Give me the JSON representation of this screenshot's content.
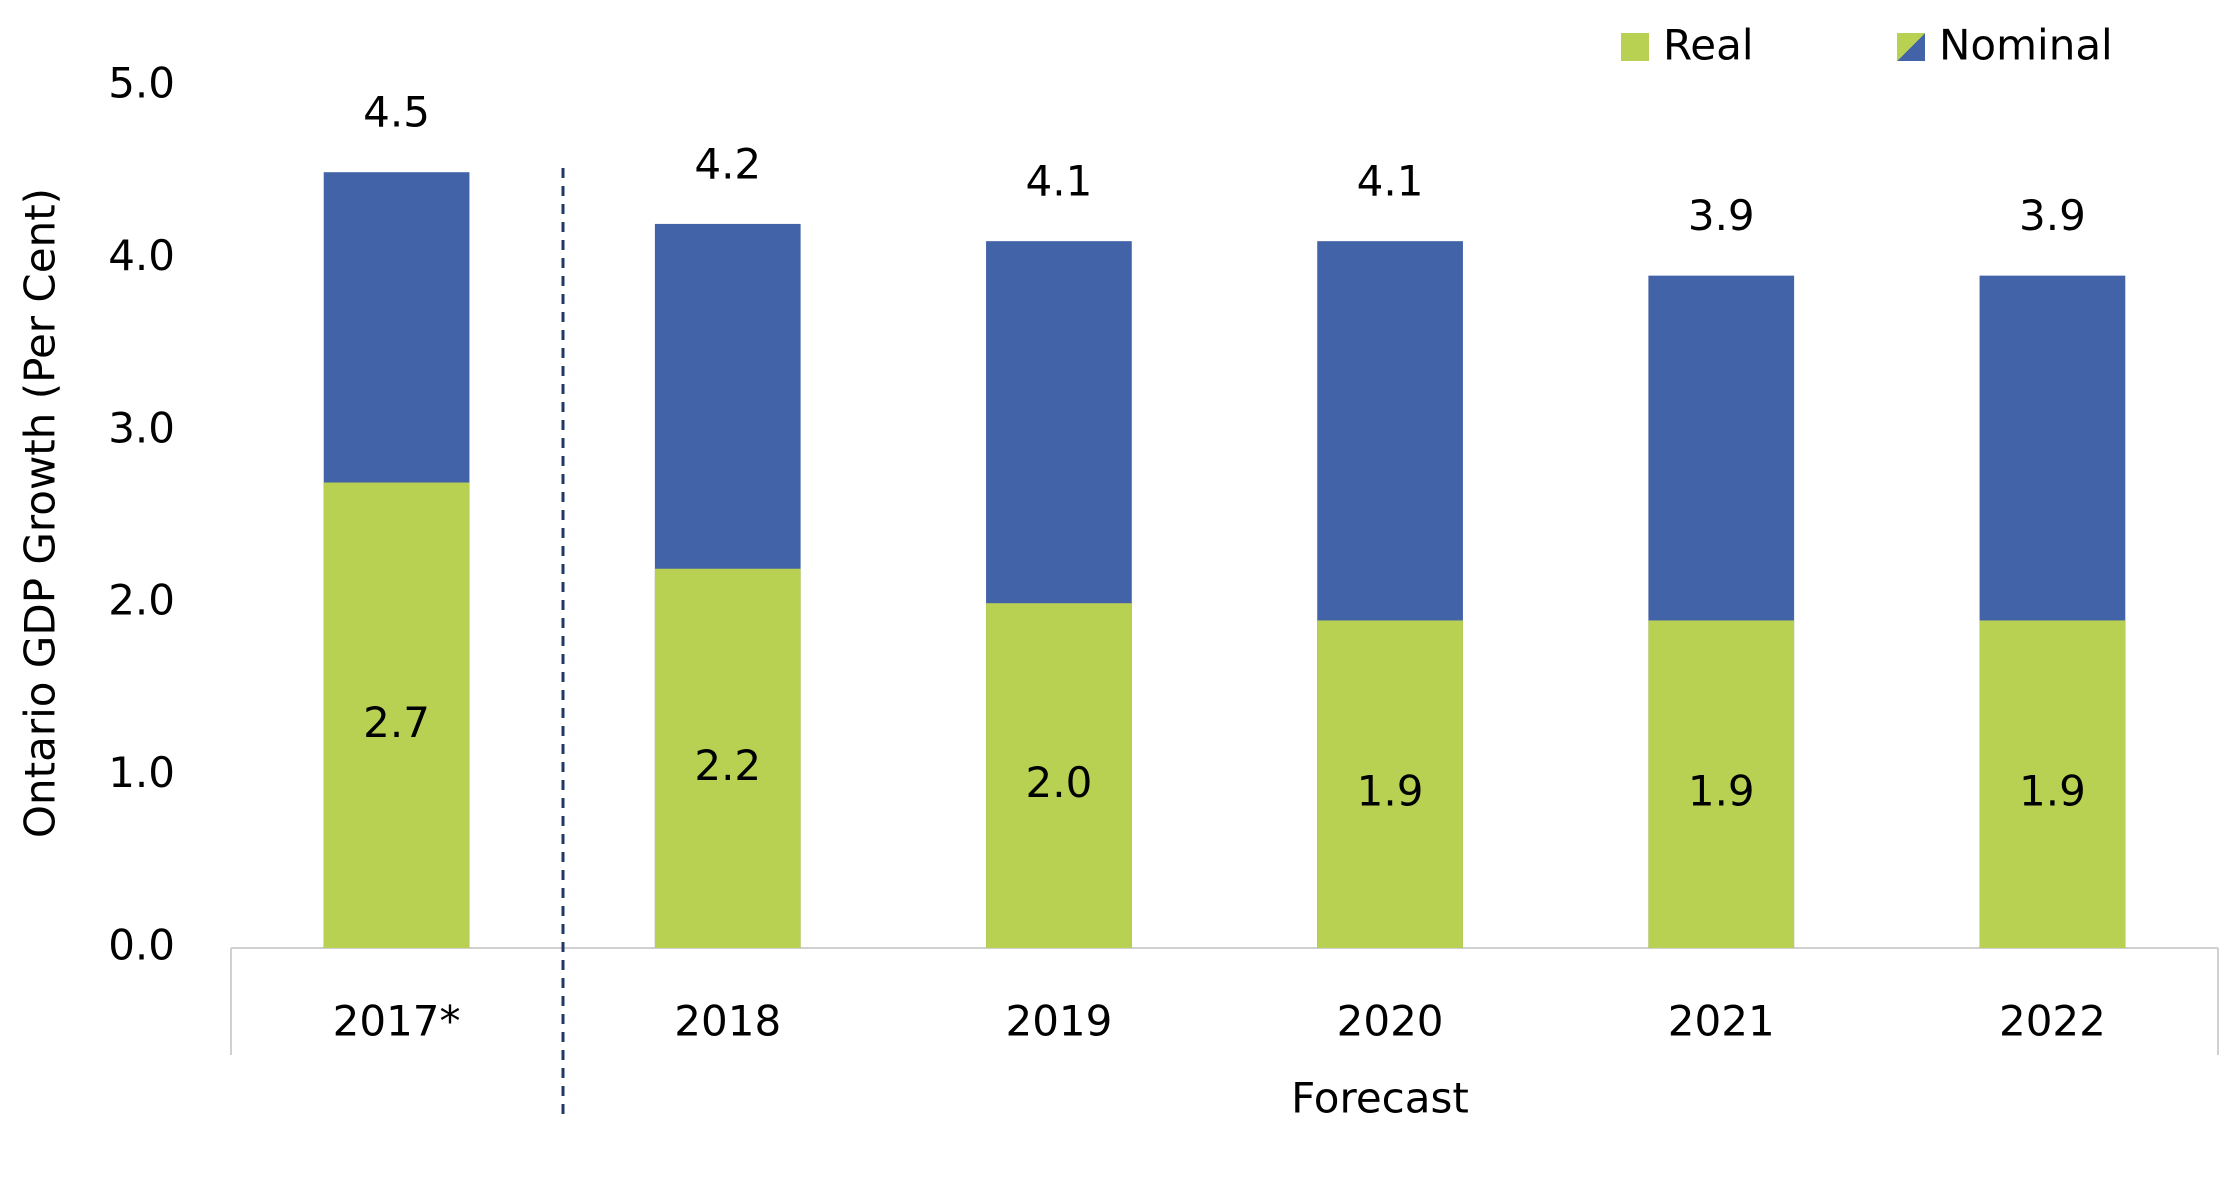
{
  "chart_data": {
    "type": "bar",
    "y_label": "Ontario GDP Growth (Per Cent)",
    "annotation": "Forecast",
    "categories": [
      "2017*",
      "2018",
      "2019",
      "2020",
      "2021",
      "2022"
    ],
    "series": [
      {
        "name": "Nominal",
        "color": "#4263a8",
        "values": [
          4.5,
          4.2,
          4.1,
          4.1,
          3.9,
          3.9
        ],
        "value_labels": [
          "4.5",
          "4.2",
          "4.1",
          "4.1",
          "3.9",
          "3.9"
        ]
      },
      {
        "name": "Real",
        "color": "#b9d153",
        "values": [
          2.7,
          2.2,
          2.0,
          1.9,
          1.9,
          1.9
        ],
        "value_labels": [
          "2.7",
          "2.2",
          "2.0",
          "1.9",
          "1.9",
          "1.9"
        ]
      }
    ],
    "ylim": [
      0,
      5
    ],
    "yticks": [
      {
        "value": 0,
        "label": "0.0"
      },
      {
        "value": 1,
        "label": "1.0"
      },
      {
        "value": 2,
        "label": "2.0"
      },
      {
        "value": 3,
        "label": "3.0"
      },
      {
        "value": 4,
        "label": "4.0"
      },
      {
        "value": 5,
        "label": "5.0"
      }
    ]
  }
}
